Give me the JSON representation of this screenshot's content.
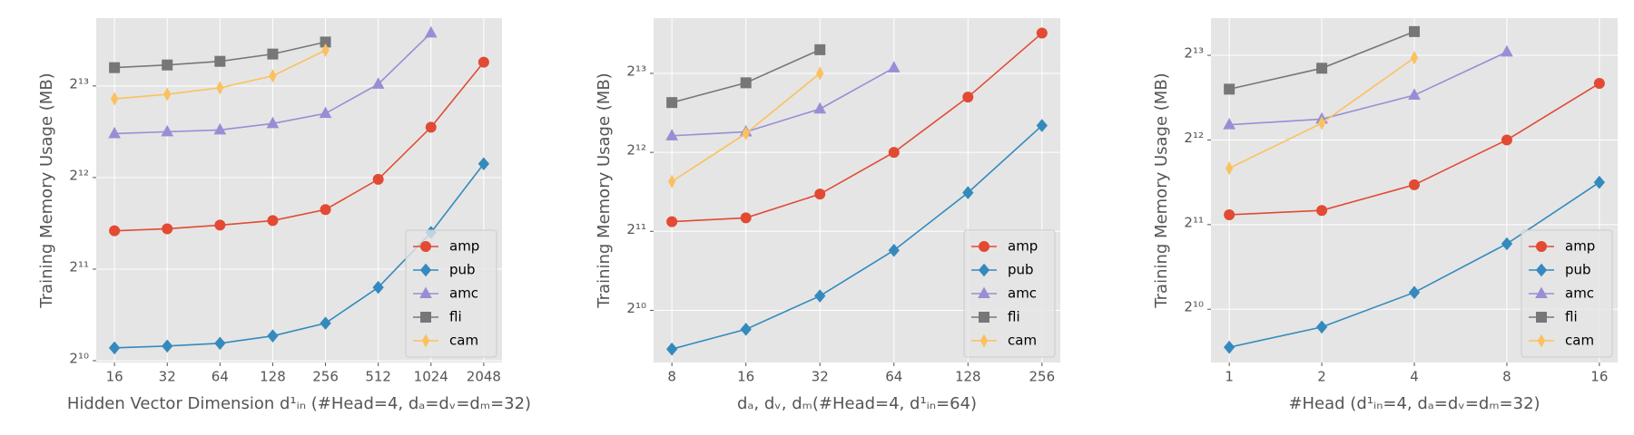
{
  "chart_data": [
    {
      "type": "line",
      "xlabel": "Hidden Vector Dimension d¹ᵢₙ (#Head=4, dₐ=dᵥ=dₘ=32)",
      "ylabel": "Training Memory Usage (MB)",
      "categories": [
        "16",
        "32",
        "64",
        "128",
        "256",
        "512",
        "1024",
        "2048"
      ],
      "log_y": 2,
      "ylim": [
        1010,
        13690
      ],
      "grid": true,
      "legend": "lower right",
      "yticks": [
        {
          "value": 1024,
          "label": "2¹⁰"
        },
        {
          "value": 2048,
          "label": "2¹¹"
        },
        {
          "value": 4096,
          "label": "2¹²"
        },
        {
          "value": 8192,
          "label": "2¹³"
        }
      ],
      "series": [
        {
          "name": "amp",
          "color": "#e24a33",
          "marker": "o",
          "values": [
            2737,
            2779,
            2857,
            2957,
            3214,
            4040,
            5994,
            9810
          ]
        },
        {
          "name": "pub",
          "color": "#348abd",
          "marker": "D",
          "values": [
            1128,
            1144,
            1168,
            1235,
            1360,
            1783,
            2702,
            4544
          ]
        },
        {
          "name": "amc",
          "color": "#988ed5",
          "marker": "^",
          "values": [
            5711,
            5793,
            5872,
            6164,
            6654,
            8305,
            12240,
            null
          ]
        },
        {
          "name": "fli",
          "color": "#777777",
          "marker": "s",
          "values": [
            9410,
            9603,
            9870,
            10430,
            11425,
            null,
            null,
            null
          ]
        },
        {
          "name": "cam",
          "color": "#fbc15e",
          "marker": "d",
          "values": [
            7433,
            7690,
            8080,
            8840,
            10730,
            null,
            null,
            null
          ]
        }
      ]
    },
    {
      "type": "line",
      "xlabel": "dₐ, dᵥ, dₘ(#Head=4, d¹ᵢₙ=64)",
      "ylabel": "Training Memory Usage (MB)",
      "categories": [
        "8",
        "16",
        "32",
        "64",
        "128",
        "256"
      ],
      "log_y": 2,
      "ylim": [
        648,
        13300
      ],
      "grid": true,
      "legend": "lower right",
      "yticks": [
        {
          "value": 1024,
          "label": "2¹⁰"
        },
        {
          "value": 2048,
          "label": "2¹¹"
        },
        {
          "value": 4096,
          "label": "2¹²"
        },
        {
          "value": 8192,
          "label": "2¹³"
        }
      ],
      "series": [
        {
          "name": "amp",
          "color": "#e24a33",
          "marker": "o",
          "values": [
            2230,
            2305,
            2840,
            4096,
            6650,
            11660
          ]
        },
        {
          "name": "pub",
          "color": "#348abd",
          "marker": "D",
          "values": [
            729,
            867,
            1162,
            1734,
            2875,
            5182
          ]
        },
        {
          "name": "amc",
          "color": "#988ed5",
          "marker": "^",
          "values": [
            4736,
            4904,
            5995,
            8600,
            null,
            null
          ]
        },
        {
          "name": "fli",
          "color": "#777777",
          "marker": "s",
          "values": [
            6340,
            7540,
            10080,
            null,
            null,
            null
          ]
        },
        {
          "name": "cam",
          "color": "#fbc15e",
          "marker": "d",
          "values": [
            3170,
            4837,
            8192,
            null,
            null,
            null
          ]
        }
      ]
    },
    {
      "type": "line",
      "xlabel": "#Head (d¹ᵢₙ=4, dₐ=dᵥ=dₘ=32)",
      "ylabel": "Training Memory Usage (MB)",
      "categories": [
        "1",
        "2",
        "4",
        "8",
        "16"
      ],
      "log_y": 2,
      "ylim": [
        662,
        11110
      ],
      "grid": true,
      "legend": "lower right",
      "yticks": [
        {
          "value": 1024,
          "label": "2¹⁰"
        },
        {
          "value": 2048,
          "label": "2¹¹"
        },
        {
          "value": 4096,
          "label": "2¹²"
        },
        {
          "value": 8192,
          "label": "2¹³"
        }
      ],
      "series": [
        {
          "name": "amp",
          "color": "#e24a33",
          "marker": "o",
          "values": [
            2220,
            2300,
            2837,
            4096,
            6510
          ]
        },
        {
          "name": "pub",
          "color": "#348abd",
          "marker": "D",
          "values": [
            750,
            885,
            1175,
            1750,
            2895
          ]
        },
        {
          "name": "amc",
          "color": "#988ed5",
          "marker": "^",
          "values": [
            4640,
            4860,
            5910,
            8420,
            null
          ]
        },
        {
          "name": "fli",
          "color": "#777777",
          "marker": "s",
          "values": [
            6210,
            7370,
            9950,
            null,
            null
          ]
        },
        {
          "name": "cam",
          "color": "#fbc15e",
          "marker": "d",
          "values": [
            3250,
            4700,
            8030,
            null,
            null
          ]
        }
      ]
    }
  ]
}
